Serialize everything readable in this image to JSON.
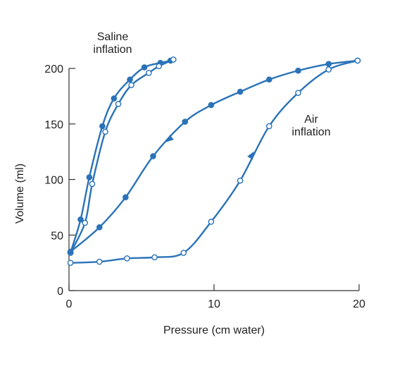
{
  "chart_data": {
    "type": "line",
    "title": "",
    "xlabel": "Pressure (cm water)",
    "ylabel": "Volume (ml)",
    "xlim": [
      0,
      20
    ],
    "ylim": [
      0,
      200
    ],
    "xticks": [
      "0",
      "10",
      "20"
    ],
    "yticks": [
      "0",
      "50",
      "100",
      "150",
      "200"
    ],
    "grid": false,
    "legend": "none",
    "annotations": [
      {
        "lines": [
          "Saline",
          "inflation"
        ]
      },
      {
        "lines": [
          "Air",
          "inflation"
        ]
      }
    ],
    "colors": {
      "series": "#2a73b8",
      "axis": "#333333",
      "text": "#222222"
    },
    "series": [
      {
        "marker": "filled",
        "curve": "saline-deflation",
        "points": [
          [
            0.1,
            34
          ],
          [
            0.8,
            64
          ],
          [
            1.4,
            102
          ],
          [
            2.3,
            148
          ],
          [
            3.1,
            173
          ],
          [
            4.2,
            190
          ],
          [
            5.2,
            201
          ],
          [
            6.3,
            205
          ],
          [
            7.0,
            207
          ]
        ]
      },
      {
        "marker": "open",
        "curve": "saline-inflation",
        "points": [
          [
            0.1,
            34
          ],
          [
            1.1,
            61
          ],
          [
            1.6,
            96
          ],
          [
            2.5,
            143
          ],
          [
            3.4,
            168
          ],
          [
            4.3,
            185
          ],
          [
            5.5,
            196
          ],
          [
            6.2,
            202
          ],
          [
            7.2,
            208
          ]
        ]
      },
      {
        "marker": "filled",
        "curve": "air-deflation",
        "points": [
          [
            0.1,
            35
          ],
          [
            2.1,
            57
          ],
          [
            3.9,
            84
          ],
          [
            5.8,
            121
          ],
          [
            8.0,
            152
          ],
          [
            9.8,
            167
          ],
          [
            11.8,
            179
          ],
          [
            13.8,
            190
          ],
          [
            15.8,
            198
          ],
          [
            17.9,
            204
          ],
          [
            19.9,
            207
          ]
        ]
      },
      {
        "marker": "open",
        "curve": "air-inflation",
        "points": [
          [
            0.1,
            25
          ],
          [
            2.1,
            26
          ],
          [
            4.0,
            29
          ],
          [
            5.9,
            30
          ],
          [
            7.9,
            34
          ],
          [
            9.8,
            62
          ],
          [
            11.8,
            99
          ],
          [
            13.8,
            148
          ],
          [
            15.8,
            178
          ],
          [
            17.9,
            199
          ],
          [
            19.9,
            207
          ]
        ]
      }
    ]
  }
}
